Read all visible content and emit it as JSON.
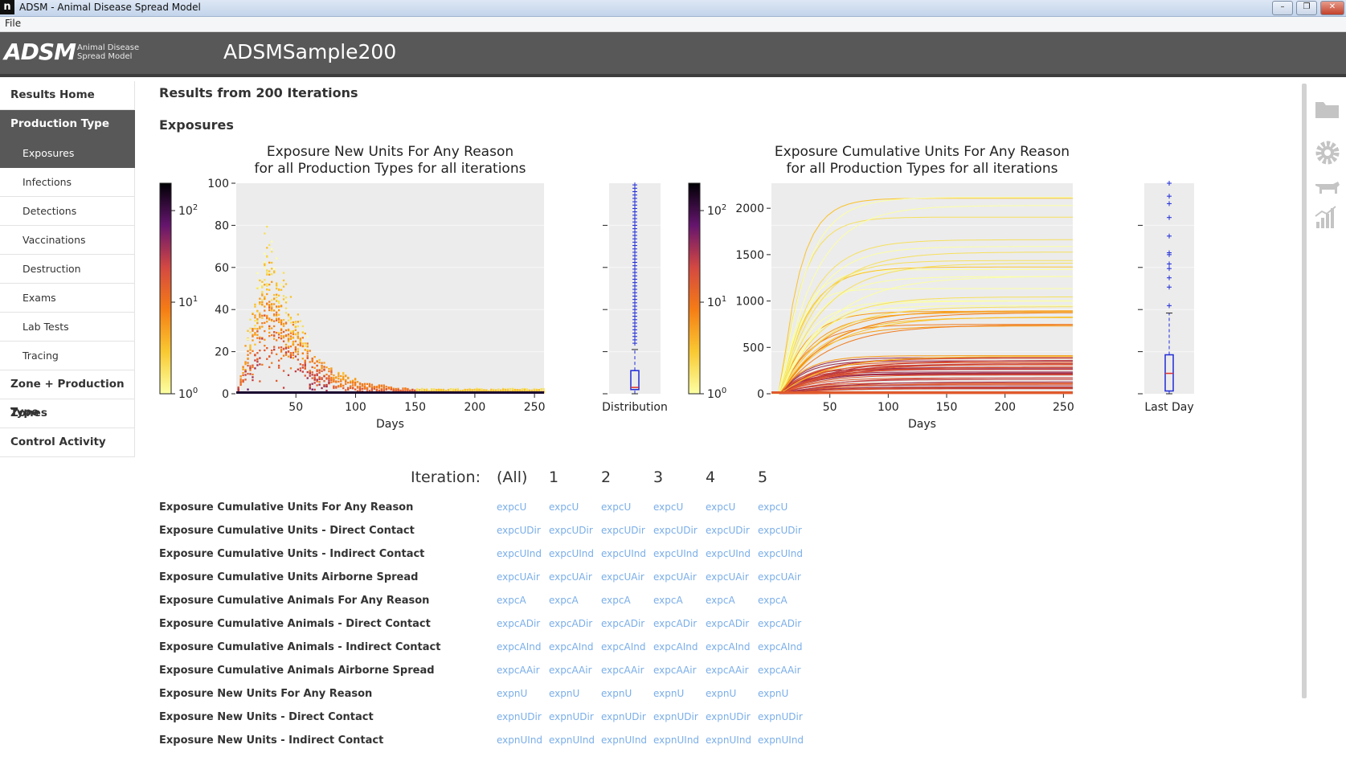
{
  "window": {
    "title": "ADSM - Animal Disease Spread Model",
    "app_icon": "n",
    "minimize": "–",
    "restore": "❐",
    "close": "✕"
  },
  "menu": {
    "file": "File"
  },
  "header": {
    "logo": "ADSM",
    "logo_sub1": "Animal Disease",
    "logo_sub2": "Spread Model",
    "scenario": "ADSMSample200"
  },
  "sidebar": {
    "items": [
      {
        "label": "Results Home",
        "level": 0,
        "active": false
      },
      {
        "label": "Production Type",
        "level": 0,
        "active": true
      },
      {
        "label": "Exposures",
        "level": 1,
        "active": true
      },
      {
        "label": "Infections",
        "level": 1,
        "active": false
      },
      {
        "label": "Detections",
        "level": 1,
        "active": false
      },
      {
        "label": "Vaccinations",
        "level": 1,
        "active": false
      },
      {
        "label": "Destruction",
        "level": 1,
        "active": false
      },
      {
        "label": "Exams",
        "level": 1,
        "active": false
      },
      {
        "label": "Lab Tests",
        "level": 1,
        "active": false
      },
      {
        "label": "Tracing",
        "level": 1,
        "active": false
      },
      {
        "label": "Zone + Production Type",
        "level": 0,
        "active": false
      },
      {
        "label": "Zones",
        "level": 0,
        "active": false
      },
      {
        "label": "Control Activity",
        "level": 0,
        "active": false
      }
    ]
  },
  "main": {
    "results_title": "Results from 200 Iterations",
    "section": "Exposures"
  },
  "chart_data": [
    {
      "type": "heatmap",
      "title": "Exposure New Units For Any Reason",
      "subtitle": "for all Production Types for all iterations",
      "xlabel": "Days",
      "ylabel": "",
      "xticks": [
        50,
        100,
        150,
        200,
        250
      ],
      "yticks": [
        0,
        20,
        40,
        60,
        80,
        100
      ],
      "xlim": [
        0,
        258
      ],
      "ylim": [
        0,
        100
      ],
      "colorbar": {
        "scale": "log",
        "ticks": [
          "10^0",
          "10^1",
          "10^2"
        ],
        "colormap": "inferno_r"
      },
      "boxplot": {
        "label": "Distribution",
        "q1": 2,
        "median": 3,
        "q3": 11,
        "whisker_low": 0,
        "whisker_high": 21,
        "outlier_range": [
          24,
          100
        ]
      }
    },
    {
      "type": "heatmap",
      "title": "Exposure Cumulative Units For Any Reason",
      "subtitle": "for all Production Types for all iterations",
      "xlabel": "Days",
      "ylabel": "",
      "xticks": [
        50,
        100,
        150,
        200,
        250
      ],
      "yticks": [
        0,
        500,
        1000,
        1500,
        2000
      ],
      "xlim": [
        0,
        258
      ],
      "ylim": [
        0,
        2270
      ],
      "colorbar": {
        "scale": "log",
        "ticks": [
          "10^0",
          "10^1",
          "10^2"
        ],
        "colormap": "inferno_r"
      },
      "boxplot": {
        "label": "Last Day",
        "q1": 30,
        "median": 220,
        "q3": 420,
        "whisker_low": 0,
        "whisker_high": 870,
        "outliers": [
          950,
          1150,
          1250,
          1350,
          1400,
          1500,
          1520,
          1700,
          1900,
          2050,
          2130,
          2270
        ]
      }
    }
  ],
  "table": {
    "iteration_label": "Iteration:",
    "columns": [
      "(All)",
      "1",
      "2",
      "3",
      "4",
      "5"
    ],
    "rows": [
      {
        "label": "Exposure Cumulative Units For Any Reason",
        "code": "expcU"
      },
      {
        "label": "Exposure Cumulative Units - Direct Contact",
        "code": "expcUDir"
      },
      {
        "label": "Exposure Cumulative Units - Indirect Contact",
        "code": "expcUInd"
      },
      {
        "label": "Exposure Cumulative Units Airborne Spread",
        "code": "expcUAir"
      },
      {
        "label": "Exposure Cumulative Animals For Any Reason",
        "code": "expcA"
      },
      {
        "label": "Exposure Cumulative Animals - Direct Contact",
        "code": "expcADir"
      },
      {
        "label": "Exposure Cumulative Animals - Indirect Contact",
        "code": "expcAInd"
      },
      {
        "label": "Exposure Cumulative Animals Airborne Spread",
        "code": "expcAAir"
      },
      {
        "label": "Exposure New Units For Any Reason",
        "code": "expnU"
      },
      {
        "label": "Exposure New Units - Direct Contact",
        "code": "expnUDir"
      },
      {
        "label": "Exposure New Units - Indirect Contact",
        "code": "expnUInd"
      }
    ]
  },
  "right_toolbar": [
    "folder-icon",
    "gear-icon",
    "cow-icon",
    "chart-icon"
  ]
}
